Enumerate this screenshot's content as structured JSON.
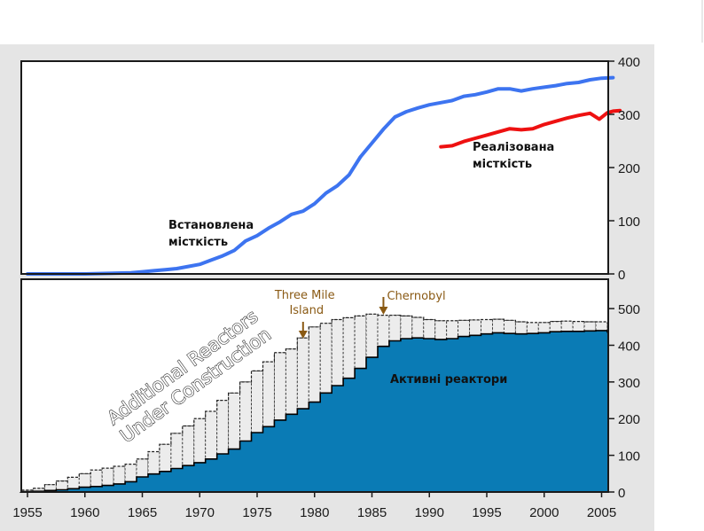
{
  "chart_data": [
    {
      "type": "line",
      "y_axis_side": "right",
      "yticks": [
        "0",
        "100",
        "200",
        "300",
        "400"
      ],
      "ylim": [
        0,
        400
      ],
      "xlim": [
        1955,
        2006
      ],
      "grid": false,
      "series": [
        {
          "label": "Встановлена місткість",
          "label_lines": [
            "Встановлена",
            "місткість"
          ],
          "color": "#3d74f0",
          "points": [
            [
              1955,
              0
            ],
            [
              1958,
              0
            ],
            [
              1960,
              0
            ],
            [
              1962,
              1
            ],
            [
              1964,
              2
            ],
            [
              1965,
              4
            ],
            [
              1966,
              6
            ],
            [
              1967,
              8
            ],
            [
              1968,
              10
            ],
            [
              1969,
              14
            ],
            [
              1970,
              18
            ],
            [
              1971,
              26
            ],
            [
              1972,
              34
            ],
            [
              1973,
              44
            ],
            [
              1974,
              62
            ],
            [
              1975,
              72
            ],
            [
              1976,
              86
            ],
            [
              1977,
              98
            ],
            [
              1978,
              112
            ],
            [
              1979,
              118
            ],
            [
              1980,
              132
            ],
            [
              1981,
              152
            ],
            [
              1982,
              166
            ],
            [
              1983,
              186
            ],
            [
              1984,
              220
            ],
            [
              1985,
              246
            ],
            [
              1986,
              272
            ],
            [
              1987,
              295
            ],
            [
              1988,
              305
            ],
            [
              1989,
              312
            ],
            [
              1990,
              318
            ],
            [
              1991,
              322
            ],
            [
              1992,
              326
            ],
            [
              1993,
              334
            ],
            [
              1994,
              337
            ],
            [
              1995,
              342
            ],
            [
              1996,
              348
            ],
            [
              1997,
              348
            ],
            [
              1998,
              344
            ],
            [
              1999,
              348
            ],
            [
              2000,
              351
            ],
            [
              2001,
              354
            ],
            [
              2002,
              358
            ],
            [
              2003,
              360
            ],
            [
              2004,
              365
            ],
            [
              2005,
              368
            ],
            [
              2006,
              369
            ]
          ]
        },
        {
          "label": "Реалізована місткість",
          "label_lines": [
            "Реалізована",
            "місткість"
          ],
          "color": "#ee1111",
          "points": [
            [
              1991,
              239
            ],
            [
              1992,
              241
            ],
            [
              1993,
              249
            ],
            [
              1994,
              255
            ],
            [
              1995,
              261
            ],
            [
              1996,
              267
            ],
            [
              1997,
              273
            ],
            [
              1998,
              271
            ],
            [
              1999,
              273
            ],
            [
              2000,
              281
            ],
            [
              2001,
              287
            ],
            [
              2002,
              293
            ],
            [
              2003,
              298
            ],
            [
              2004,
              302
            ],
            [
              2004.8,
              291
            ],
            [
              2005.5,
              303
            ],
            [
              2006,
              306
            ],
            [
              2006.6,
              307
            ]
          ]
        }
      ]
    },
    {
      "type": "area",
      "xticks": [
        "1955",
        "1960",
        "1965",
        "1970",
        "1975",
        "1980",
        "1985",
        "1990",
        "1995",
        "2000",
        "2005"
      ],
      "yticks": [
        "0",
        "100",
        "200",
        "300",
        "400",
        "500"
      ],
      "ylim": [
        0,
        580
      ],
      "y_axis_side": "right",
      "years": [
        1955,
        1956,
        1957,
        1958,
        1959,
        1960,
        1961,
        1962,
        1963,
        1964,
        1965,
        1966,
        1967,
        1968,
        1969,
        1970,
        1971,
        1972,
        1973,
        1974,
        1975,
        1976,
        1977,
        1978,
        1979,
        1980,
        1981,
        1982,
        1983,
        1984,
        1985,
        1986,
        1987,
        1988,
        1989,
        1990,
        1991,
        1992,
        1993,
        1994,
        1995,
        1996,
        1997,
        1998,
        1999,
        2000,
        2001,
        2002,
        2003,
        2004,
        2005,
        2006
      ],
      "series": [
        {
          "label": "Активні реактори",
          "color": "#0a7bb5",
          "values": [
            1,
            2,
            4,
            6,
            9,
            13,
            15,
            18,
            22,
            28,
            41,
            49,
            56,
            64,
            72,
            80,
            90,
            104,
            117,
            139,
            162,
            178,
            196,
            212,
            227,
            245,
            270,
            290,
            310,
            337,
            367,
            397,
            412,
            418,
            420,
            418,
            416,
            418,
            424,
            427,
            431,
            434,
            432,
            431,
            432,
            434,
            437,
            438,
            438,
            439,
            440,
            436
          ]
        },
        {
          "label": "Additional Reactors Under Construction",
          "label_lines": [
            "Additional Reactors",
            "Under Construction"
          ],
          "color": "#ececec",
          "total_values": [
            5,
            10,
            20,
            30,
            40,
            50,
            60,
            65,
            70,
            76,
            90,
            110,
            130,
            160,
            180,
            200,
            220,
            250,
            270,
            300,
            330,
            355,
            380,
            390,
            420,
            450,
            460,
            470,
            475,
            480,
            485,
            482,
            482,
            480,
            476,
            470,
            467,
            467,
            468,
            469,
            470,
            471,
            468,
            464,
            462,
            462,
            465,
            466,
            465,
            464,
            464,
            461
          ]
        }
      ],
      "annotations": [
        {
          "text_lines": [
            "Three Mile",
            "Island"
          ],
          "year": 1979,
          "color": "#8a5a14"
        },
        {
          "text_lines": [
            "Chernobyl"
          ],
          "year": 1986,
          "color": "#8a5a14"
        }
      ]
    }
  ]
}
